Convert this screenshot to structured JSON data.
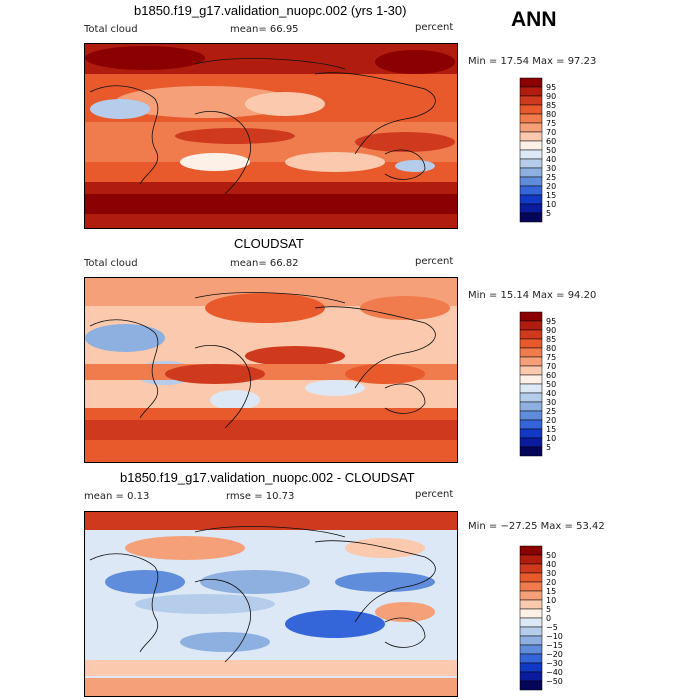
{
  "season": "ANN",
  "panels": [
    {
      "title": "b1850.f19_g17.validation_nuopc.002 (yrs 1-30)",
      "left_label": "Total cloud",
      "mean_label": "mean=  66.95",
      "units": "percent",
      "minmax": "Min =  17.54 Max =  97.23",
      "colorbar_levels": [
        "95",
        "90",
        "85",
        "80",
        "75",
        "70",
        "60",
        "50",
        "40",
        "30",
        "25",
        "20",
        "15",
        "10",
        "5"
      ],
      "colorbar_colors": [
        "#8b0000",
        "#b01c0e",
        "#cf3a1f",
        "#e85a2c",
        "#f07c4e",
        "#f6a07a",
        "#fbc9ad",
        "#fdf0e6",
        "#dce8f6",
        "#b6cceb",
        "#8eb0e0",
        "#5f8ddb",
        "#3465d9",
        "#1238c6",
        "#0b1b9e",
        "#05055a"
      ]
    },
    {
      "title": "CLOUDSAT",
      "left_label": "Total cloud",
      "mean_label": "mean=  66.82",
      "units": "percent",
      "minmax": "Min =  15.14 Max =  94.20",
      "colorbar_levels": [
        "95",
        "90",
        "85",
        "80",
        "75",
        "70",
        "60",
        "50",
        "40",
        "30",
        "25",
        "20",
        "15",
        "10",
        "5"
      ],
      "colorbar_colors": [
        "#8b0000",
        "#b01c0e",
        "#cf3a1f",
        "#e85a2c",
        "#f07c4e",
        "#f6a07a",
        "#fbc9ad",
        "#fdf0e6",
        "#dce8f6",
        "#b6cceb",
        "#8eb0e0",
        "#5f8ddb",
        "#3465d9",
        "#1238c6",
        "#0b1b9e",
        "#05055a"
      ]
    },
    {
      "title": "b1850.f19_g17.validation_nuopc.002 - CLOUDSAT",
      "left_label": "mean =    0.13",
      "mean_label": "rmse =  10.73",
      "units": "percent",
      "minmax": "Min = −27.25 Max =  53.42",
      "colorbar_levels": [
        "50",
        "40",
        "30",
        "20",
        "15",
        "10",
        "5",
        "0",
        "−5",
        "−10",
        "−15",
        "−20",
        "−30",
        "−40",
        "−50"
      ],
      "colorbar_colors": [
        "#8b0000",
        "#b01c0e",
        "#cf3a1f",
        "#e85a2c",
        "#f07c4e",
        "#f6a07a",
        "#fbc9ad",
        "#fdf0e6",
        "#dce8f6",
        "#b6cceb",
        "#8eb0e0",
        "#5f8ddb",
        "#3465d9",
        "#1238c6",
        "#0b1b9e",
        "#05055a"
      ]
    }
  ]
}
